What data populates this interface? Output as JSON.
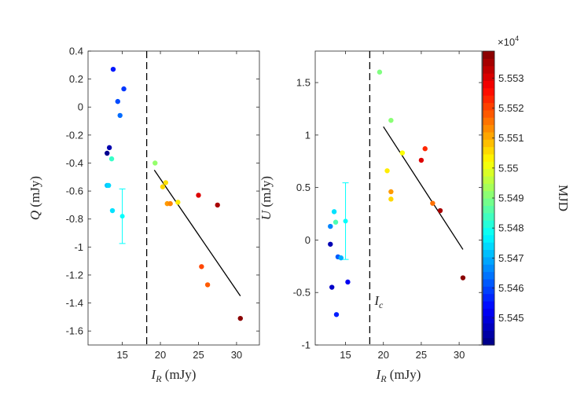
{
  "chart_data": [
    {
      "type": "scatter",
      "xlim": [
        10.5,
        33
      ],
      "ylim": [
        -1.7,
        0.4
      ],
      "xticks": [
        15,
        20,
        25,
        30
      ],
      "yticks": [
        0.4,
        0.2,
        0,
        -0.2,
        -0.4,
        -0.6,
        -0.8,
        -1,
        -1.2,
        -1.4,
        -1.6
      ],
      "ytick_labels": [
        "0.4",
        "0.2",
        "0",
        "-0.2",
        "-0.4",
        "-0.6",
        "-0.8",
        "-1",
        "-1.2",
        "-1.4",
        "-1.6"
      ],
      "xtick_labels": [
        "15",
        "20",
        "25",
        "30"
      ],
      "ylabel_var": "Q",
      "ylabel_unit": "(mJy)",
      "xlabel_var": "I",
      "xlabel_sub": "R",
      "xlabel_unit": "(mJy)",
      "vline_x": 18.2,
      "points": [
        {
          "x": 13.8,
          "y": 0.27,
          "mjd": 55455.5
        },
        {
          "x": 14.4,
          "y": 0.04,
          "mjd": 55460.5
        },
        {
          "x": 15.2,
          "y": 0.13,
          "mjd": 55458.5
        },
        {
          "x": 14.7,
          "y": -0.06,
          "mjd": 55463.5
        },
        {
          "x": 13.3,
          "y": -0.29,
          "mjd": 55445.5
        },
        {
          "x": 13.0,
          "y": -0.33,
          "mjd": 55442.5
        },
        {
          "x": 13.6,
          "y": -0.37,
          "mjd": 55483.0
        },
        {
          "x": 13.0,
          "y": -0.56,
          "mjd": 55472.0
        },
        {
          "x": 13.2,
          "y": -0.56,
          "mjd": 55474.0
        },
        {
          "x": 13.7,
          "y": -0.74,
          "mjd": 55475.0
        },
        {
          "x": 19.3,
          "y": -0.4,
          "mjd": 55492.0
        },
        {
          "x": 20.3,
          "y": -0.57,
          "mjd": 55506.0
        },
        {
          "x": 20.7,
          "y": -0.54,
          "mjd": 55505.0
        },
        {
          "x": 20.9,
          "y": -0.69,
          "mjd": 55512.0
        },
        {
          "x": 21.3,
          "y": -0.69,
          "mjd": 55514.0
        },
        {
          "x": 22.3,
          "y": -0.68,
          "mjd": 55504.0
        },
        {
          "x": 25.0,
          "y": -0.63,
          "mjd": 55530.0
        },
        {
          "x": 27.5,
          "y": -0.7,
          "mjd": 55535.0
        },
        {
          "x": 25.4,
          "y": -1.14,
          "mjd": 55520.0
        },
        {
          "x": 26.2,
          "y": -1.27,
          "mjd": 55518.0
        },
        {
          "x": 30.5,
          "y": -1.51,
          "mjd": 55538.0
        }
      ],
      "errorbar": {
        "x": 15.0,
        "y": -0.78,
        "yerr": 0.195,
        "mjd": 55478.0
      },
      "fit_line": {
        "x": [
          19.2,
          30.5
        ],
        "y": [
          -0.45,
          -1.35
        ]
      }
    },
    {
      "type": "scatter",
      "xlim": [
        11,
        33
      ],
      "ylim": [
        -1,
        1.8
      ],
      "xticks": [
        15,
        20,
        25,
        30
      ],
      "yticks": [
        1.5,
        1,
        0.5,
        0,
        -0.5,
        -1
      ],
      "ytick_labels": [
        "1.5",
        "1",
        "0.5",
        "0",
        "-0.5",
        "-1"
      ],
      "xtick_labels": [
        "15",
        "20",
        "25",
        "30"
      ],
      "ylabel_var": "U",
      "ylabel_unit": "(mJy)",
      "xlabel_var": "I",
      "xlabel_sub": "R",
      "xlabel_unit": "(mJy)",
      "vline_x": 18.2,
      "vline_label": "I",
      "vline_label_sub": "c",
      "points": [
        {
          "x": 19.5,
          "y": 1.6,
          "mjd": 55490.0
        },
        {
          "x": 21.0,
          "y": 1.14,
          "mjd": 55491.0
        },
        {
          "x": 22.5,
          "y": 0.83,
          "mjd": 55502.0
        },
        {
          "x": 25.5,
          "y": 0.87,
          "mjd": 55523.0
        },
        {
          "x": 25.0,
          "y": 0.76,
          "mjd": 55530.0
        },
        {
          "x": 20.5,
          "y": 0.66,
          "mjd": 55504.0
        },
        {
          "x": 21.0,
          "y": 0.46,
          "mjd": 55512.0
        },
        {
          "x": 21.0,
          "y": 0.39,
          "mjd": 55506.0
        },
        {
          "x": 26.5,
          "y": 0.35,
          "mjd": 55516.0
        },
        {
          "x": 27.5,
          "y": 0.28,
          "mjd": 55535.0
        },
        {
          "x": 30.5,
          "y": -0.36,
          "mjd": 55538.0
        },
        {
          "x": 13.5,
          "y": 0.27,
          "mjd": 55475.0
        },
        {
          "x": 13.7,
          "y": 0.17,
          "mjd": 55485.0
        },
        {
          "x": 13.0,
          "y": 0.13,
          "mjd": 55466.0
        },
        {
          "x": 13.0,
          "y": -0.04,
          "mjd": 55446.0
        },
        {
          "x": 14.0,
          "y": -0.16,
          "mjd": 55462.0
        },
        {
          "x": 14.4,
          "y": -0.17,
          "mjd": 55470.0
        },
        {
          "x": 15.3,
          "y": -0.4,
          "mjd": 55452.0
        },
        {
          "x": 13.2,
          "y": -0.45,
          "mjd": 55448.0
        },
        {
          "x": 13.8,
          "y": -0.71,
          "mjd": 55456.0
        }
      ],
      "errorbar": {
        "x": 15.0,
        "y": 0.18,
        "yerr": 0.365,
        "mjd": 55478.0
      },
      "fit_line": {
        "x": [
          20.0,
          30.5
        ],
        "y": [
          1.08,
          -0.09
        ]
      }
    }
  ],
  "colorbar": {
    "label": "MJD",
    "multiplier": "×10",
    "multiplier_exp": "4",
    "min": 55441.0,
    "max": 55539.0,
    "ticks": [
      55450,
      55460,
      55470,
      55480,
      55490,
      55500,
      55510,
      55520,
      55530
    ],
    "tick_labels": [
      "5.545",
      "5.546",
      "5.547",
      "5.548",
      "5.549",
      "5.55",
      "5.551",
      "5.552",
      "5.553"
    ]
  }
}
